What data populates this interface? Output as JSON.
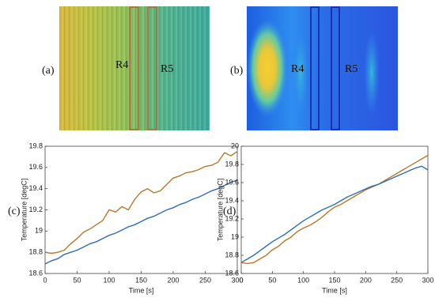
{
  "panels": [
    {
      "label": "(a)",
      "regions": [
        "R4",
        "R5"
      ]
    },
    {
      "label": "(b)",
      "regions": [
        "R4",
        "R5"
      ]
    }
  ],
  "chart_data": [
    {
      "type": "line",
      "panel_label": "(c)",
      "xlabel": "Time [s]",
      "ylabel": "Temperature [degC]",
      "x": [
        0,
        10,
        20,
        30,
        40,
        50,
        60,
        70,
        80,
        90,
        100,
        110,
        120,
        130,
        140,
        150,
        160,
        170,
        180,
        190,
        200,
        210,
        220,
        230,
        240,
        250,
        260,
        270,
        280,
        290,
        300
      ],
      "series": [
        {
          "color": "#b8792b",
          "values": [
            18.8,
            18.79,
            18.8,
            18.82,
            18.88,
            18.93,
            18.99,
            19.02,
            19.06,
            19.1,
            19.2,
            19.18,
            19.23,
            19.2,
            19.3,
            19.37,
            19.4,
            19.36,
            19.38,
            19.44,
            19.5,
            19.52,
            19.55,
            19.56,
            19.58,
            19.61,
            19.62,
            19.65,
            19.74,
            19.71,
            19.75
          ]
        },
        {
          "color": "#2e6db8",
          "values": [
            18.69,
            18.72,
            18.74,
            18.78,
            18.8,
            18.82,
            18.85,
            18.88,
            18.9,
            18.93,
            18.96,
            18.98,
            19.01,
            19.04,
            19.06,
            19.09,
            19.12,
            19.14,
            19.17,
            19.2,
            19.22,
            19.25,
            19.27,
            19.3,
            19.32,
            19.35,
            19.38,
            19.4,
            19.43,
            19.46,
            19.48
          ]
        }
      ],
      "xlim": [
        0,
        300
      ],
      "xticks": [
        0,
        50,
        100,
        150,
        200,
        250,
        300
      ],
      "ylim": [
        18.6,
        19.8
      ],
      "yticks": [
        18.6,
        18.8,
        19,
        19.2,
        19.4,
        19.6,
        19.8
      ]
    },
    {
      "type": "line",
      "panel_label": "(d)",
      "xlabel": "Time [s]",
      "ylabel": "Temperature [degC]",
      "x": [
        0,
        10,
        20,
        30,
        40,
        50,
        60,
        70,
        80,
        90,
        100,
        110,
        120,
        130,
        140,
        150,
        160,
        170,
        180,
        190,
        200,
        210,
        220,
        230,
        240,
        250,
        260,
        270,
        280,
        290,
        300
      ],
      "series": [
        {
          "color": "#b8792b",
          "values": [
            18.72,
            18.71,
            18.72,
            18.76,
            18.8,
            18.86,
            18.9,
            18.96,
            19.0,
            19.06,
            19.1,
            19.13,
            19.17,
            19.22,
            19.28,
            19.33,
            19.36,
            19.4,
            19.44,
            19.48,
            19.52,
            19.55,
            19.58,
            19.62,
            19.66,
            19.7,
            19.74,
            19.78,
            19.82,
            19.86,
            19.9
          ]
        },
        {
          "color": "#2e6db8",
          "values": [
            18.72,
            18.76,
            18.8,
            18.85,
            18.9,
            18.95,
            18.99,
            19.03,
            19.08,
            19.13,
            19.18,
            19.22,
            19.26,
            19.3,
            19.33,
            19.36,
            19.4,
            19.44,
            19.47,
            19.5,
            19.53,
            19.56,
            19.58,
            19.61,
            19.64,
            19.67,
            19.7,
            19.73,
            19.76,
            19.78,
            19.74
          ]
        }
      ],
      "xlim": [
        0,
        300
      ],
      "xticks": [
        0,
        50,
        100,
        150,
        200,
        250,
        300
      ],
      "ylim": [
        18.6,
        20
      ],
      "yticks": [
        18.6,
        18.8,
        19,
        19.2,
        19.4,
        19.6,
        19.8,
        20
      ]
    }
  ]
}
